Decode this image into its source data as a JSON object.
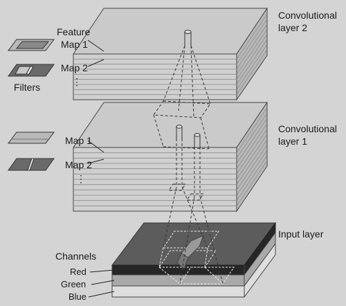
{
  "layers": {
    "conv2": {
      "line1": "Convolutional",
      "line2": "layer 2"
    },
    "conv1": {
      "line1": "Convolutional",
      "line2": "layer 1"
    },
    "input": {
      "label": "Input layer"
    }
  },
  "legend_top": {
    "feature_label": "Feature",
    "map1": "Map 1",
    "map2": "Map 2",
    "ellipsis": "⋮",
    "filters": "Filters"
  },
  "legend_mid": {
    "map1": "Map 1",
    "map2": "Map 2",
    "ellipsis": "⋮"
  },
  "channels": {
    "title": "Channels",
    "items": [
      "Red",
      "Green",
      "Blue"
    ]
  },
  "colors": {
    "background": "#d4d4d4",
    "conv_top": "#c9c9c9",
    "input_top": "#5a5a5a",
    "red_band": "#262626",
    "green_band": "#a8a8a8",
    "blue_band": "#dcdcdc"
  }
}
